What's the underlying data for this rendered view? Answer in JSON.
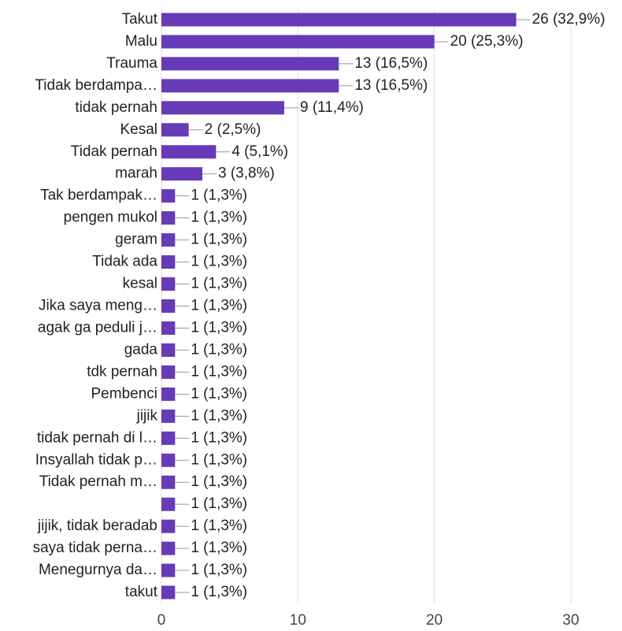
{
  "chart_data": {
    "type": "bar",
    "orientation": "horizontal",
    "categories": [
      "Takut",
      "Malu",
      "Trauma",
      "Tidak berdampa…",
      "tidak pernah",
      "Kesal",
      "Tidak pernah",
      "marah",
      "Tak berdampak…",
      "pengen mukol",
      "geram",
      "Tidak ada",
      "kesal",
      "Jika saya meng…",
      "agak ga peduli j…",
      "gada",
      "tdk pernah",
      "Pembenci",
      "jijik",
      "tidak pernah di l…",
      "Insyallah tidak p…",
      "Tidak pernah m…",
      null,
      "jijik, tidak beradab",
      "saya tidak perna…",
      "Menegurnya da…",
      "takut"
    ],
    "values": [
      26,
      20,
      13,
      13,
      9,
      2,
      4,
      3,
      1,
      1,
      1,
      1,
      1,
      1,
      1,
      1,
      1,
      1,
      1,
      1,
      1,
      1,
      1,
      1,
      1,
      1,
      1
    ],
    "value_labels": [
      "26 (32,9%)",
      "20 (25,3%)",
      "13 (16,5%)",
      "13 (16,5%)",
      "9 (11,4%)",
      "2 (2,5%)",
      "4 (5,1%)",
      "3 (3,8%)",
      "1 (1,3%)",
      "1 (1,3%)",
      "1 (1,3%)",
      "1 (1,3%)",
      "1 (1,3%)",
      "1 (1,3%)",
      "1 (1,3%)",
      "1 (1,3%)",
      "1 (1,3%)",
      "1 (1,3%)",
      "1 (1,3%)",
      "1 (1,3%)",
      "1 (1,3%)",
      "1 (1,3%)",
      "1 (1,3%)",
      "1 (1,3%)",
      "1 (1,3%)",
      "1 (1,3%)",
      "1 (1,3%)"
    ],
    "color": "#673ab7",
    "xlim": [
      0,
      30
    ],
    "xticks": [
      0,
      10,
      20,
      30
    ],
    "grid": true
  }
}
